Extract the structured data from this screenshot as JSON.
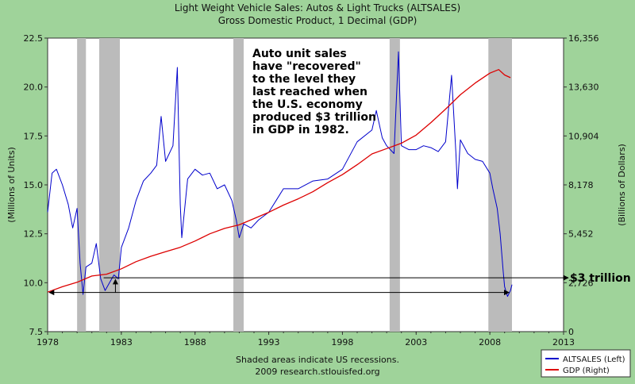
{
  "chart_data": {
    "type": "line",
    "title": "Light Weight Vehicle Sales: Autos & Light Trucks (ALTSALES)",
    "subtitle": "Gross Domestic Product, 1 Decimal (GDP)",
    "ylabel_left": "(Millions of Units)",
    "ylabel_right": "(Billions of Dollars)",
    "xlim": [
      1978,
      2013
    ],
    "ylim_left": [
      7.5,
      22.5
    ],
    "ylim_right": [
      0,
      16356
    ],
    "x_ticks": [
      1978,
      1983,
      1988,
      1993,
      1998,
      2003,
      2008,
      2013
    ],
    "y_ticks_left": [
      "7.5",
      "10.0",
      "12.5",
      "15.0",
      "17.5",
      "20.0",
      "22.5"
    ],
    "y_ticks_right": [
      "0",
      "2,726",
      "5,452",
      "8,178",
      "10,904",
      "13,630",
      "16,356"
    ],
    "recessions": [
      [
        1980.0,
        1980.6
      ],
      [
        1981.5,
        1982.9
      ],
      [
        1990.6,
        1991.3
      ],
      [
        2001.2,
        2001.9
      ],
      [
        2007.9,
        2009.5
      ]
    ],
    "series": [
      {
        "name": "ALTSALES (Left)",
        "color": "#0000cc",
        "axis": "left",
        "points": [
          [
            1978.0,
            13.6
          ],
          [
            1978.3,
            15.6
          ],
          [
            1978.6,
            15.8
          ],
          [
            1979.0,
            15.0
          ],
          [
            1979.4,
            14.0
          ],
          [
            1979.7,
            12.8
          ],
          [
            1980.0,
            13.8
          ],
          [
            1980.2,
            11.0
          ],
          [
            1980.4,
            9.4
          ],
          [
            1980.6,
            10.8
          ],
          [
            1981.0,
            11.0
          ],
          [
            1981.3,
            12.0
          ],
          [
            1981.6,
            10.2
          ],
          [
            1981.9,
            9.6
          ],
          [
            1982.2,
            10.0
          ],
          [
            1982.5,
            10.4
          ],
          [
            1982.8,
            10.2
          ],
          [
            1983.0,
            11.8
          ],
          [
            1983.5,
            12.8
          ],
          [
            1984.0,
            14.2
          ],
          [
            1984.5,
            15.2
          ],
          [
            1985.0,
            15.6
          ],
          [
            1985.4,
            16.0
          ],
          [
            1985.7,
            18.5
          ],
          [
            1986.0,
            16.2
          ],
          [
            1986.5,
            17.0
          ],
          [
            1986.8,
            21.0
          ],
          [
            1987.0,
            14.0
          ],
          [
            1987.1,
            12.3
          ],
          [
            1987.5,
            15.3
          ],
          [
            1988.0,
            15.8
          ],
          [
            1988.5,
            15.5
          ],
          [
            1989.0,
            15.6
          ],
          [
            1989.5,
            14.8
          ],
          [
            1990.0,
            15.0
          ],
          [
            1990.5,
            14.2
          ],
          [
            1990.8,
            13.2
          ],
          [
            1991.0,
            12.3
          ],
          [
            1991.3,
            13.0
          ],
          [
            1991.8,
            12.8
          ],
          [
            1992.3,
            13.2
          ],
          [
            1993.0,
            13.6
          ],
          [
            1993.5,
            14.2
          ],
          [
            1994.0,
            14.8
          ],
          [
            1995.0,
            14.8
          ],
          [
            1996.0,
            15.2
          ],
          [
            1997.0,
            15.3
          ],
          [
            1998.0,
            15.8
          ],
          [
            1999.0,
            17.2
          ],
          [
            2000.0,
            17.8
          ],
          [
            2000.3,
            18.8
          ],
          [
            2000.7,
            17.4
          ],
          [
            2001.0,
            17.0
          ],
          [
            2001.5,
            16.6
          ],
          [
            2001.8,
            21.8
          ],
          [
            2002.0,
            17.0
          ],
          [
            2002.5,
            16.8
          ],
          [
            2003.0,
            16.8
          ],
          [
            2003.5,
            17.0
          ],
          [
            2004.0,
            16.9
          ],
          [
            2004.5,
            16.7
          ],
          [
            2005.0,
            17.2
          ],
          [
            2005.4,
            20.6
          ],
          [
            2005.7,
            16.6
          ],
          [
            2005.8,
            14.8
          ],
          [
            2006.0,
            17.3
          ],
          [
            2006.5,
            16.6
          ],
          [
            2007.0,
            16.3
          ],
          [
            2007.5,
            16.2
          ],
          [
            2008.0,
            15.6
          ],
          [
            2008.2,
            14.8
          ],
          [
            2008.5,
            13.8
          ],
          [
            2008.7,
            12.5
          ],
          [
            2008.9,
            10.6
          ],
          [
            2009.0,
            9.8
          ],
          [
            2009.2,
            9.3
          ],
          [
            2009.4,
            9.6
          ],
          [
            2009.5,
            9.9
          ]
        ]
      },
      {
        "name": "GDP (Right)",
        "color": "#dd0000",
        "axis": "right",
        "points": [
          [
            1978.0,
            2200
          ],
          [
            1979.0,
            2500
          ],
          [
            1980.0,
            2750
          ],
          [
            1981.0,
            3100
          ],
          [
            1982.0,
            3200
          ],
          [
            1983.0,
            3500
          ],
          [
            1984.0,
            3900
          ],
          [
            1985.0,
            4200
          ],
          [
            1986.0,
            4450
          ],
          [
            1987.0,
            4700
          ],
          [
            1988.0,
            5050
          ],
          [
            1989.0,
            5450
          ],
          [
            1990.0,
            5750
          ],
          [
            1991.0,
            5950
          ],
          [
            1992.0,
            6300
          ],
          [
            1993.0,
            6650
          ],
          [
            1994.0,
            7050
          ],
          [
            1995.0,
            7400
          ],
          [
            1996.0,
            7800
          ],
          [
            1997.0,
            8300
          ],
          [
            1998.0,
            8750
          ],
          [
            1999.0,
            9300
          ],
          [
            2000.0,
            9900
          ],
          [
            2001.0,
            10200
          ],
          [
            2002.0,
            10500
          ],
          [
            2003.0,
            10950
          ],
          [
            2004.0,
            11650
          ],
          [
            2005.0,
            12400
          ],
          [
            2006.0,
            13200
          ],
          [
            2007.0,
            13850
          ],
          [
            2008.0,
            14400
          ],
          [
            2008.6,
            14600
          ],
          [
            2009.0,
            14300
          ],
          [
            2009.4,
            14150
          ]
        ]
      }
    ],
    "annotation": "Auto unit sales have \"recovered\" to the level they last reached when the U.S. economy produced $3 trillion in GDP in 1982.",
    "annotation_lines": [
      "Auto unit sales",
      "have \"recovered\"",
      "to the level they",
      "last reached when",
      "the U.S. economy",
      "produced $3 trillion",
      "in GDP in 1982."
    ],
    "marker_label": "$3 trillion",
    "marker_gdp_level": 3000,
    "marker_sales_level": 9.5,
    "marker_sales_x": [
      1978,
      2009.3
    ],
    "footer": [
      "Shaded areas indicate US recessions.",
      "2009 research.stlouisfed.org"
    ],
    "legend_position": "bottom-right",
    "grid": false
  }
}
